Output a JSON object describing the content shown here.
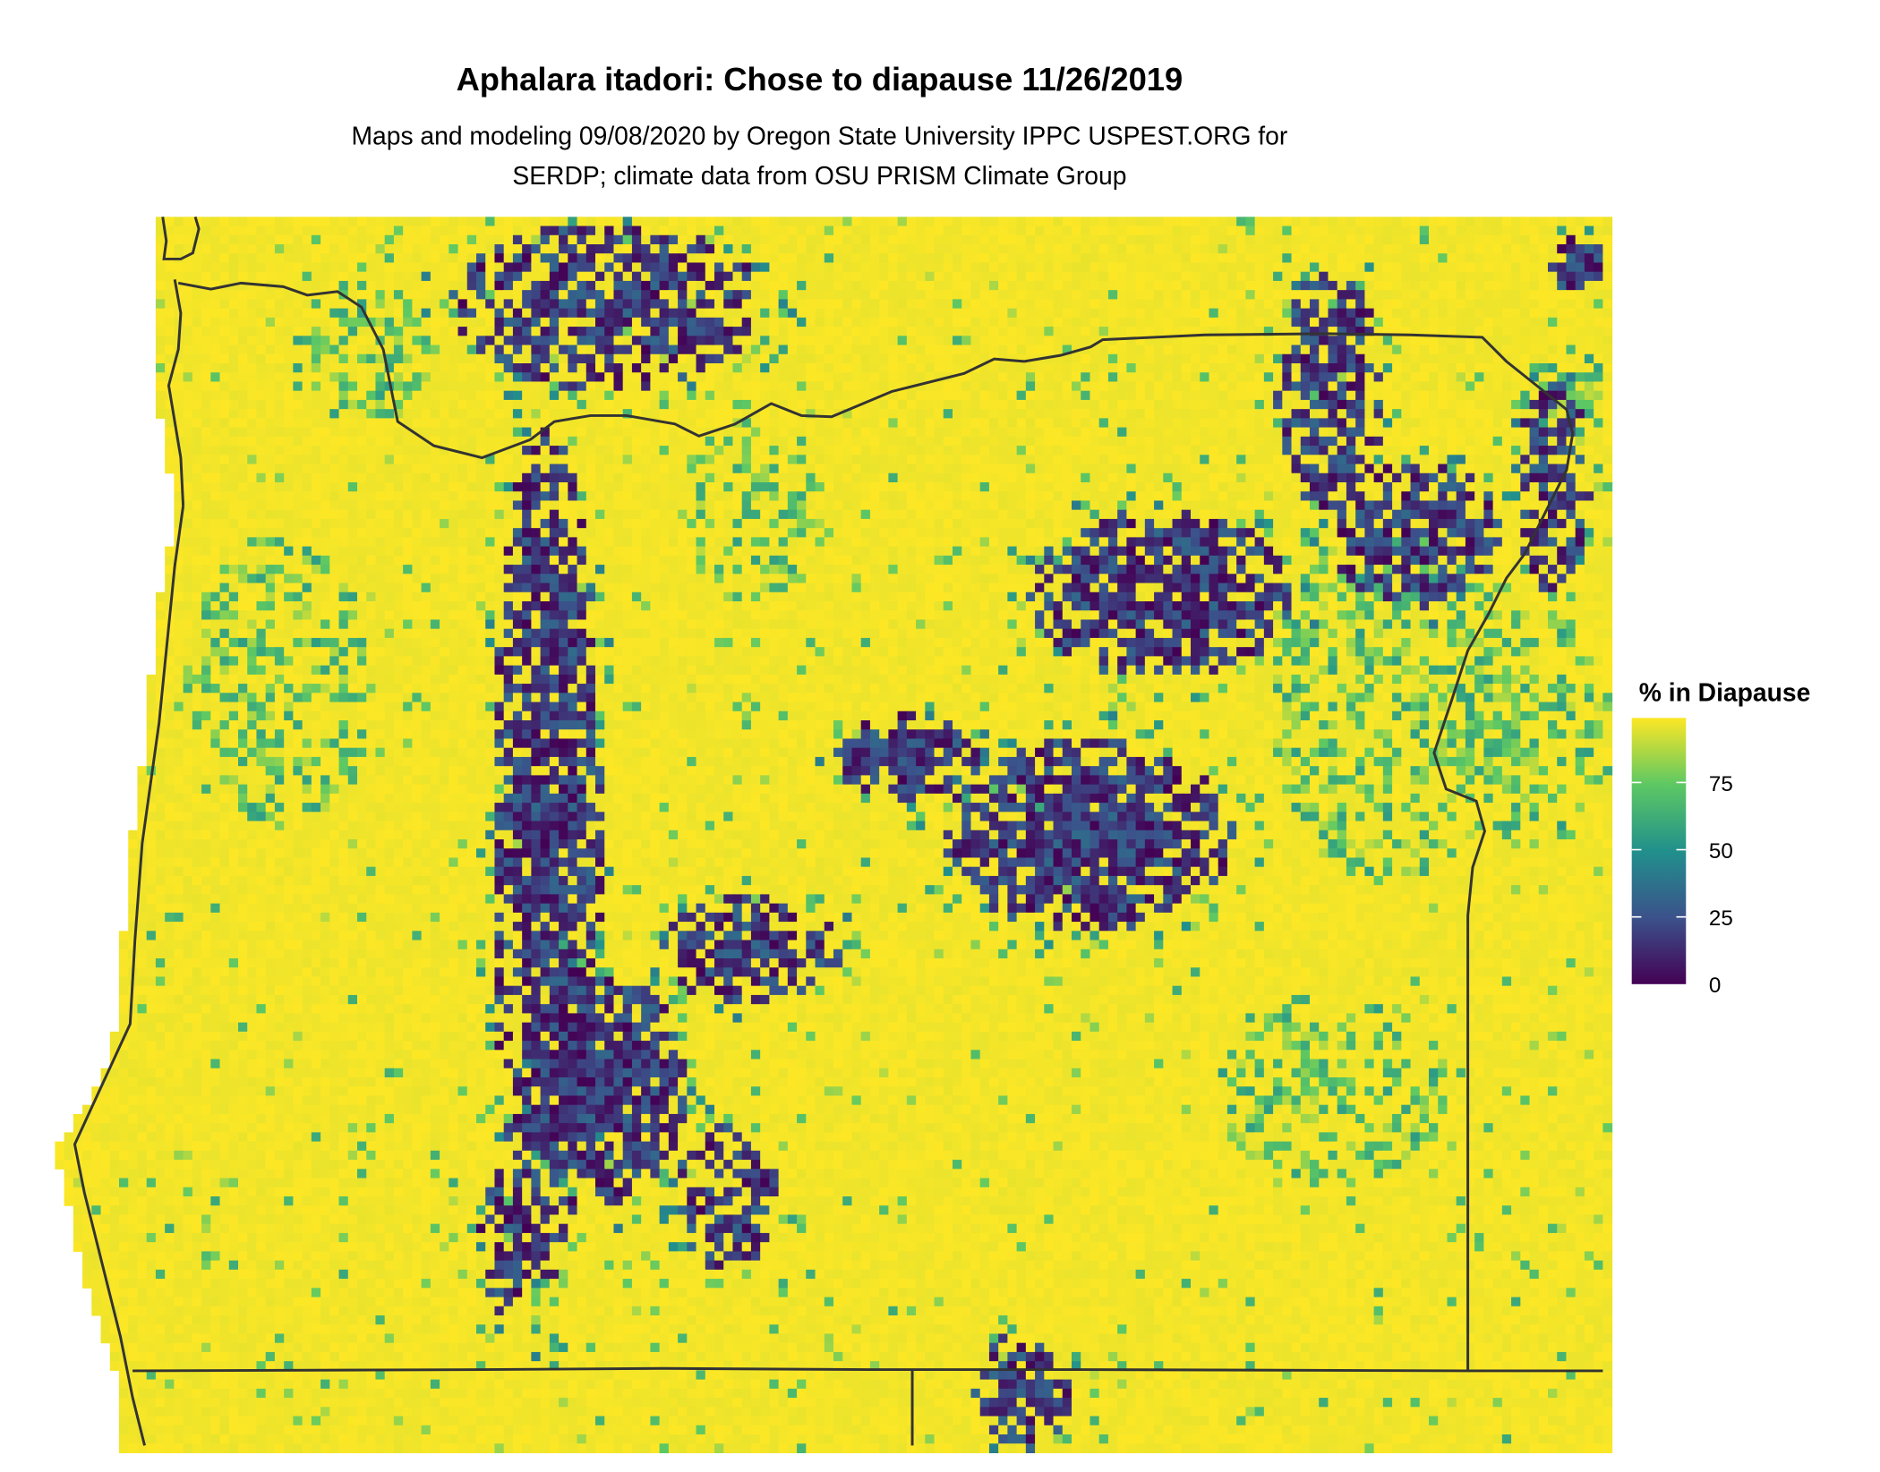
{
  "title": "Aphalara itadori: Chose to diapause 11/26/2019",
  "subtitle_line1": "Maps and modeling 09/08/2020 by Oregon State University IPPC USPEST.ORG for",
  "subtitle_line2": "SERDP; climate data from OSU PRISM Climate Group",
  "legend": {
    "title": "% in Diapause",
    "ticks": [
      "0",
      "25",
      "50",
      "75"
    ],
    "range": [
      0,
      100
    ],
    "colormap": "viridis",
    "colors": [
      "#440154",
      "#3b528b",
      "#21908c",
      "#5dc863",
      "#fde725"
    ]
  },
  "map": {
    "background_value_color": "#fde725",
    "boundary_color": "#333333"
  }
}
